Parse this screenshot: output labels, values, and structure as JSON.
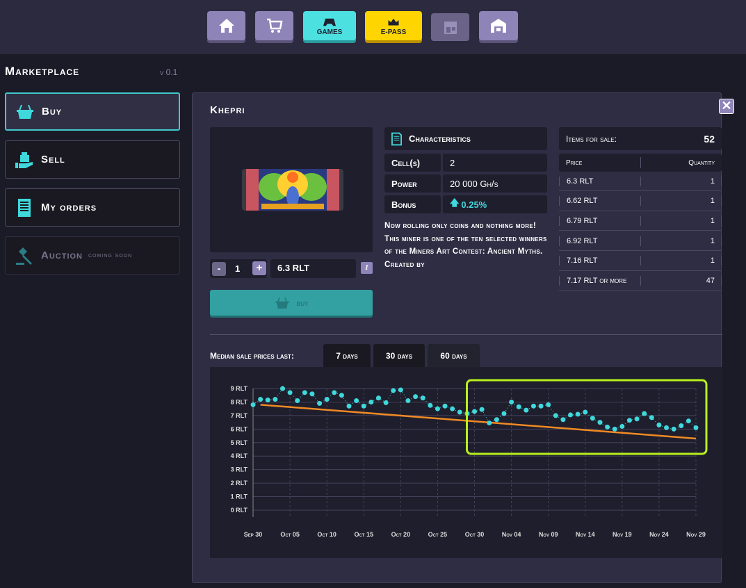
{
  "nav": {
    "items": [
      {
        "name": "home",
        "icon": "home-icon"
      },
      {
        "name": "store",
        "icon": "cart-icon"
      },
      {
        "name": "games",
        "label": "GAMES",
        "icon": "gamepad-icon",
        "color": "#4de0e0"
      },
      {
        "name": "epass",
        "label": "E-PASS",
        "icon": "crown-icon",
        "color": "#ffd500"
      },
      {
        "name": "shop",
        "icon": "storefront-icon"
      },
      {
        "name": "storage",
        "icon": "warehouse-icon"
      }
    ]
  },
  "sidebar": {
    "title": "Marketplace",
    "version": "v 0.1",
    "items": [
      {
        "label": "Buy",
        "icon": "basket-icon",
        "active": true
      },
      {
        "label": "Sell",
        "icon": "sell-bag-icon"
      },
      {
        "label": "My orders",
        "icon": "receipt-icon"
      },
      {
        "label": "Auction",
        "note": "coming soon",
        "icon": "gavel-icon",
        "disabled": true
      }
    ]
  },
  "product": {
    "name": "Khepri",
    "quantity": "1",
    "price": "6.3 RLT",
    "buy_label": "buy",
    "characteristics_title": "Characteristics",
    "specs": [
      {
        "label": "Cell(s)",
        "value": "2"
      },
      {
        "label": "Power",
        "value": "20 000 Gh/s"
      },
      {
        "label": "Bonus",
        "value": "0.25%"
      }
    ],
    "description": "Now rolling only coins and nothing more! This miner is one of the ten selected winners of the Miners Art Contest: Ancient Myths. Created by"
  },
  "sale": {
    "label": "Items for sale:",
    "count": "52",
    "headers": [
      "Price",
      "Quantity"
    ],
    "rows": [
      [
        "6.3 RLT",
        "1"
      ],
      [
        "6.62 RLT",
        "1"
      ],
      [
        "6.79 RLT",
        "1"
      ],
      [
        "6.92 RLT",
        "1"
      ],
      [
        "7.16 RLT",
        "1"
      ],
      [
        "7.17 RLT or more",
        "47"
      ]
    ]
  },
  "history": {
    "label": "Median sale prices last:",
    "tabs": [
      "7 days",
      "30 days",
      "60 days"
    ]
  },
  "chart_data": {
    "type": "scatter",
    "ylim": [
      0,
      9
    ],
    "yticks": [
      "0 RLT",
      "1 RLT",
      "2 RLT",
      "3 RLT",
      "4 RLT",
      "5 RLT",
      "6 RLT",
      "7 RLT",
      "8 RLT",
      "9 RLT"
    ],
    "xticks": [
      "Sep 30",
      "Oct 05",
      "Oct 10",
      "Oct 15",
      "Oct 20",
      "Oct 25",
      "Oct 30",
      "Nov 04",
      "Nov 09",
      "Nov 14",
      "Nov 19",
      "Nov 24",
      "Nov 29"
    ],
    "x_start": "Sep 30",
    "x_end": "Nov 29",
    "values": [
      7.8,
      8.2,
      8.15,
      8.2,
      9.0,
      8.7,
      8.1,
      8.7,
      8.6,
      7.9,
      8.2,
      8.7,
      8.5,
      7.7,
      8.1,
      7.7,
      8.0,
      8.3,
      7.95,
      8.85,
      8.9,
      8.1,
      8.4,
      8.3,
      7.75,
      7.5,
      7.7,
      7.5,
      7.25,
      7.15,
      7.3,
      7.45,
      6.45,
      6.7,
      7.15,
      8.0,
      7.65,
      7.4,
      7.7,
      7.7,
      7.8,
      7.0,
      6.7,
      7.05,
      7.1,
      7.25,
      6.8,
      6.5,
      6.15,
      6.0,
      6.2,
      6.65,
      6.75,
      7.15,
      6.85,
      6.3,
      6.1,
      6.0,
      6.25,
      6.6,
      6.1
    ],
    "trend": {
      "from": {
        "x": "Oct 01",
        "y": 7.8
      },
      "to": {
        "x": "Nov 29",
        "y": 5.3
      },
      "color": "#f08a24"
    },
    "point_color": "#3fd9dc",
    "highlight": {
      "from": "Oct 30",
      "to": "Nov 29",
      "color": "#b8f01e"
    },
    "grid": true
  }
}
